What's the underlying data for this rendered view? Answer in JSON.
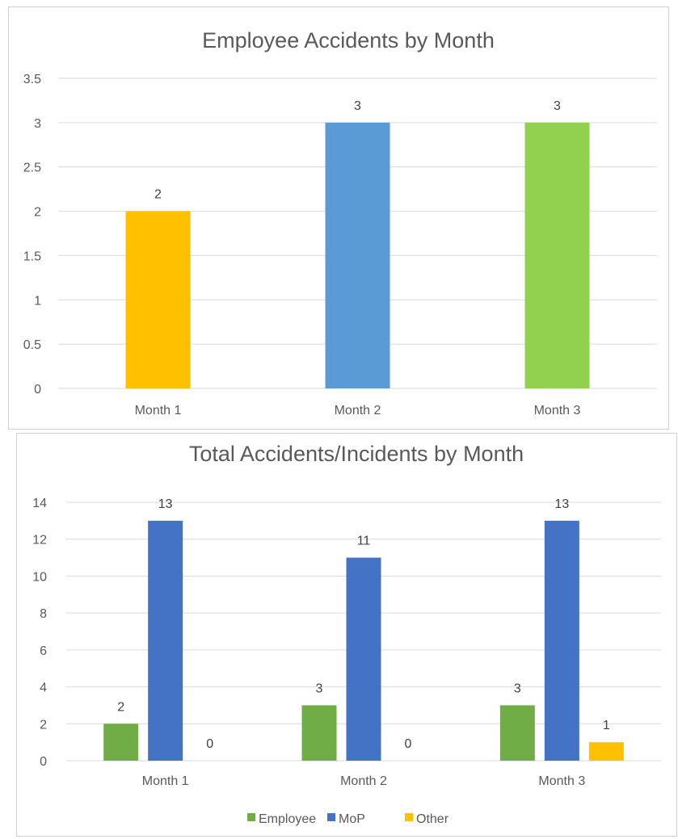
{
  "chart_data": [
    {
      "type": "bar",
      "title": "Employee Accidents by Month",
      "categories": [
        "Month 1",
        "Month 2",
        "Month 3"
      ],
      "values": [
        2,
        3,
        3
      ],
      "bar_colors": [
        "#FFC000",
        "#5B9BD5",
        "#92D050"
      ],
      "ylim": [
        0,
        3.5
      ],
      "yticks": [
        "0",
        "0.5",
        "1",
        "1.5",
        "2",
        "2.5",
        "3",
        "3.5"
      ],
      "grid": true,
      "legend": "none"
    },
    {
      "type": "bar",
      "title": "Total Accidents/Incidents by Month",
      "categories": [
        "Month 1",
        "Month 2",
        "Month 3"
      ],
      "series": [
        {
          "name": "Employee",
          "values": [
            2,
            3,
            3
          ],
          "color": "#70AD47"
        },
        {
          "name": "MoP",
          "values": [
            13,
            11,
            13
          ],
          "color": "#4472C4"
        },
        {
          "name": "Other",
          "values": [
            0,
            0,
            1
          ],
          "color": "#FFC000"
        }
      ],
      "ylim": [
        0,
        14
      ],
      "yticks": [
        "0",
        "2",
        "4",
        "6",
        "8",
        "10",
        "12",
        "14"
      ],
      "grid": true,
      "legend": "bottom"
    }
  ]
}
